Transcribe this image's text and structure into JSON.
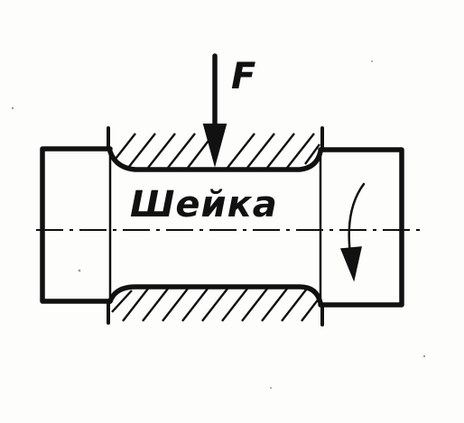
{
  "diagram": {
    "force_label": "F",
    "journal_label": "Шейка",
    "colors": {
      "ink": "#111111",
      "paper": "#fdfdfb"
    },
    "icons": {
      "force_arrow": "down-arrow-icon",
      "rotation_arrow": "rotation-arrow-icon"
    }
  }
}
